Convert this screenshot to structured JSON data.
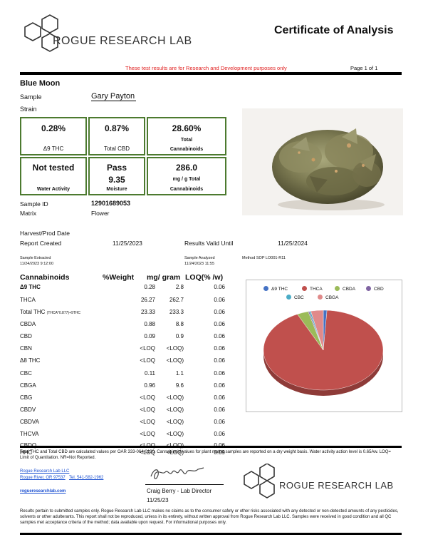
{
  "header": {
    "logo_text": "ROGUE RESEARCH LAB",
    "title": "Certificate of Analysis",
    "notice": "These test results are for Research and Development purposes only",
    "page": "Page 1 of 1"
  },
  "sample_info": {
    "name": "Blue Moon",
    "sample_label": "Sample",
    "sample_value": "Gary Payton",
    "strain_label": "Strain"
  },
  "summary_boxes": [
    {
      "value": "0.28%",
      "label": "Δ9 THC"
    },
    {
      "value": "0.87%",
      "label": "Total CBD"
    },
    {
      "value": "28.60%",
      "label1": "Total",
      "label2": "Cannabinoids"
    },
    {
      "value": "Not tested",
      "label": "Water Activity"
    },
    {
      "value": "Pass",
      "value2": "9.35",
      "label": "Moisture"
    },
    {
      "value": "286.0",
      "sub": "mg / g Total",
      "label": "Cannabinoids"
    }
  ],
  "details": {
    "sample_id_label": "Sample ID",
    "sample_id": "12901689053",
    "matrix_label": "Matrix",
    "matrix": "Flower",
    "harvest_label": "Harvest/Prod Date",
    "report_label": "Report Created",
    "report_date": "11/25/2023",
    "valid_label": "Results Valid Until",
    "valid_date": "11/25/2024",
    "extracted_label": "Sample Extracted",
    "extracted_date": "11/24/2023 9:12:00",
    "analyzed_label": "Sample Analyzed",
    "analyzed_date": "11/24/2023 11:55",
    "method": "Method SOP LO001-R11"
  },
  "table": {
    "headers": [
      "Cannabinoids",
      "%Weight",
      "mg/ gram",
      "LOQ(% /w)"
    ],
    "rows": [
      {
        "name": "Δ9 THC",
        "w": "0.28",
        "mg": "2.8",
        "loq": "0.06",
        "bold": true
      },
      {
        "name": "THCA",
        "w": "26.27",
        "mg": "262.7",
        "loq": "0.06"
      },
      {
        "name": "Total THC",
        "note": "(THCA*0.877)+9THC",
        "w": "23.33",
        "mg": "233.3",
        "loq": "0.06"
      },
      {
        "name": "CBDA",
        "w": "0.88",
        "mg": "8.8",
        "loq": "0.06"
      },
      {
        "name": "CBD",
        "w": "0.09",
        "mg": "0.9",
        "loq": "0.06"
      },
      {
        "name": "CBN",
        "w": "<LOQ",
        "mg": "<LOQ)",
        "loq": "0.06"
      },
      {
        "name": "Δ8 THC",
        "w": "<LOQ",
        "mg": "<LOQ)",
        "loq": "0.06"
      },
      {
        "name": "CBC",
        "w": "0.11",
        "mg": "1.1",
        "loq": "0.06"
      },
      {
        "name": "CBGA",
        "w": "0.96",
        "mg": "9.6",
        "loq": "0.06"
      },
      {
        "name": "CBG",
        "w": "<LOQ",
        "mg": "<LOQ)",
        "loq": "0.06"
      },
      {
        "name": "CBDV",
        "w": "<LOQ",
        "mg": "<LOQ)",
        "loq": "0.06"
      },
      {
        "name": "CBDVA",
        "w": "<LOQ",
        "mg": "<LOQ)",
        "loq": "0.06"
      },
      {
        "name": "THCVA",
        "w": "<LOQ",
        "mg": "<LOQ)",
        "loq": "0.06"
      },
      {
        "name": "CBDQ",
        "w": "<LOQ",
        "mg": "<LOQ)",
        "loq": "0.06"
      },
      {
        "name": "HHC",
        "w": "<LOQ",
        "mg": "<LOQ)",
        "loq": "0.09"
      }
    ]
  },
  "chart_data": {
    "type": "pie",
    "categories": [
      "Δ9 THC",
      "THCA",
      "CBDA",
      "CBD",
      "CBC",
      "CBGA"
    ],
    "values": [
      0.28,
      26.27,
      0.88,
      0.09,
      0.11,
      0.96
    ],
    "colors": [
      "#4472c4",
      "#c0504d",
      "#9bbb59",
      "#8064a2",
      "#4bacc6",
      "#e08a8a"
    ],
    "legend_position": "top"
  },
  "footer": {
    "note": "Total THC and Total CBD are calculated values per OAR 333-064-0100.  Cannabinoid values for plant matter samples are reported on a dry weight basis. Water activity action level is 0.65Aw. LOQ= Limit of Quantitation. NR=Not Reported.",
    "company": "Rogue Research Lab LLC",
    "address": "Rogue River, OR 97537",
    "phone": "Tel.  541-582-1962",
    "website": "rogueresearchlab.com",
    "signer": "Craig Berry - Lab Director",
    "sign_date": "11/25/23",
    "logo_text": "ROGUE RESEARCH LAB",
    "disclaimer": "Results pertain to submitted samples only. Rogue Research Lab LLC makes no claims as to the consumer safety or other risks associated with any detected or non-detected amounts of any pesticides, solvents or other adulterants. This report shall not be reproduced, unless in its entirety, without written approval from Rogue Research Lab LLC. Samples were received in good condition and all QC samples met acceptance criteria of the method; data available upon request. For informational purposes only."
  }
}
